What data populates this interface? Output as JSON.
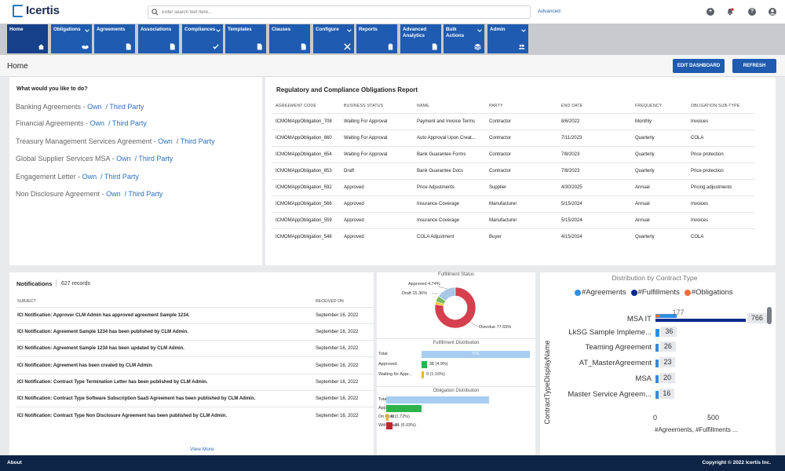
{
  "header": {
    "logo_text": "Icertis",
    "search_placeholder": "Enter search text here...",
    "advanced_label": "Advanced",
    "icons": [
      "plus-circle-icon",
      "bell-icon",
      "help-icon",
      "user-icon"
    ]
  },
  "nav": {
    "items": [
      {
        "label": "Home",
        "icon": "home-icon",
        "has_dropdown": false,
        "active": true
      },
      {
        "label": "Obligations",
        "icon": "handshake-icon",
        "has_dropdown": true
      },
      {
        "label": "Agreements",
        "icon": "document-icon",
        "has_dropdown": false
      },
      {
        "label": "Associations",
        "icon": "document-icon",
        "has_dropdown": false
      },
      {
        "label": "Compliances",
        "icon": "checkmarks-icon",
        "has_dropdown": true
      },
      {
        "label": "Templates",
        "icon": "document-icon",
        "has_dropdown": false
      },
      {
        "label": "Clauses",
        "icon": "document-icon",
        "has_dropdown": false
      },
      {
        "label": "Configure",
        "icon": "tools-icon",
        "has_dropdown": true
      },
      {
        "label": "Reports",
        "icon": "clipboard-icon",
        "has_dropdown": false
      },
      {
        "label": "Advanced\nAnalytics",
        "icon": "document-icon",
        "has_dropdown": false
      },
      {
        "label": "Bulk\nActions",
        "icon": "layers-icon",
        "has_dropdown": true
      },
      {
        "label": "Admin",
        "icon": "users-icon",
        "has_dropdown": true
      }
    ]
  },
  "page": {
    "title": "Home",
    "edit_dashboard": "EDIT DASHBOARD",
    "refresh": "REFRESH"
  },
  "quick_links": {
    "title": "What would you like to do?",
    "own": "Own",
    "third_party": "Third Party",
    "items": [
      "Banking Agreements",
      "Financial Agreements",
      "Treasury Management Services Agreement",
      "Global Supplier Services MSA",
      "Engagement Letter",
      "Non Disclosure Agreement"
    ]
  },
  "report": {
    "title": "Regulatory and Compliance Obligations Report",
    "columns": [
      "AGREEMENT CODE",
      "BUSINESS STATUS",
      "NAME",
      "PARTY",
      "END DATE",
      "FREQUENCY",
      "OBLIGATION SUB-TYPE"
    ],
    "rows": [
      [
        "ICMOMAppObligation_708",
        "Waiting For Approval",
        "Payment and Invoice Terms",
        "Contractor",
        "8/6/2022",
        "Monthly",
        "Invoices"
      ],
      [
        "ICMOMAppObligation_660",
        "Waiting For Approval",
        "Auto Approval Upon Creat...",
        "Contractor",
        "7/11/2023",
        "Quarterly",
        "COLA"
      ],
      [
        "ICMOMAppObligation_654",
        "Waiting For Approval",
        "Bank Guarantee Forms",
        "Contractor",
        "7/8/2023",
        "Quarterly",
        "Price protection"
      ],
      [
        "ICMOMAppObligation_653",
        "Draft",
        "Bank Guarantee Docs",
        "Contractor",
        "7/8/2023",
        "Quarterly",
        "Price protection"
      ],
      [
        "ICMOMAppObligation_592",
        "Approved",
        "Price Adjustments",
        "Supplier",
        "4/30/2025",
        "Annual",
        "Pricing adjustments"
      ],
      [
        "ICMOMAppObligation_566",
        "Approved",
        "Insurance Coverage",
        "Manufacturer",
        "5/15/2024",
        "Annual",
        "Invoices"
      ],
      [
        "ICMOMAppObligation_559",
        "Approved",
        "Insurance Coverage",
        "Manufacturer",
        "5/15/2024",
        "Annual",
        "Invoices"
      ],
      [
        "ICMOMAppObligation_546",
        "Approved",
        "COLA Adjustment",
        "Buyer",
        "4/15/2024",
        "Quarterly",
        "COLA"
      ]
    ]
  },
  "notifications": {
    "title": "Notifications",
    "count": "627 records",
    "columns": [
      "SUBJECT",
      "RECEIVED ON"
    ],
    "rows": [
      [
        "ICI Notification: Approver CLM Admin has approved agreement Sample 1234.",
        "September 16, 2022"
      ],
      [
        "ICI Notification: Agreement Sample 1234 has been published by CLM Admin.",
        "September 16, 2022"
      ],
      [
        "ICI Notification: Agreement Sample 1234 has been updated by CLM Admin.",
        "September 16, 2022"
      ],
      [
        "ICI Notification: Agreement has been created by CLM Admin.",
        "September 16, 2022"
      ],
      [
        "ICI Notification: Contract Type Termination Letter has been published by CLM Admin.",
        "September 16, 2022"
      ],
      [
        "ICI Notification: Contract Type Software Subscription SaaS Agreement has been published by CLM Admin.",
        "September 16, 2022"
      ],
      [
        "ICI Notification: Contract Type Non Disclosure Agreement has been published by CLM Admin.",
        "September 16, 2022"
      ]
    ],
    "view_more": "View More"
  },
  "chart_data": [
    {
      "type": "pie",
      "title": "Fulfillment Status",
      "categories": [
        "Approved",
        "Draft",
        "Overdue"
      ],
      "values": [
        4.74,
        15.36,
        77.65
      ],
      "labels": [
        "Approved 4.74%",
        "Draft 15.36%",
        "Overdue 77.65%"
      ],
      "colors": [
        "#7ab85c",
        "#a7c7e7",
        "#d4404e"
      ],
      "remainder_color": "#f0c419"
    },
    {
      "type": "bar",
      "title": "Fulfillment Distribution",
      "categories": [
        "Total",
        "Approved",
        "Waiting for Appr..."
      ],
      "values": [
        776,
        38,
        9
      ],
      "max": 776,
      "value_labels": [
        "776",
        "38 (4.9%)",
        "9 (1.16%)"
      ],
      "colors": [
        "#a7cdf0",
        "#2db34a",
        "#f0b429"
      ]
    },
    {
      "type": "bar",
      "title": "Obligation Distribution",
      "categories": [
        "Total",
        "Approved",
        "On Hold",
        "Withdrawn"
      ],
      "values": [
        348,
        120,
        6,
        21
      ],
      "max": 348,
      "value_labels": [
        "",
        "",
        "6 (1.72%)",
        "21 (6.03%)"
      ],
      "colors": [
        "#a7cdf0",
        "#2db34a",
        "#f0b429",
        "#c0272d"
      ]
    },
    {
      "type": "bar",
      "title": "Distribution by Contract Type",
      "ylabel": "ContractTypeDisplayName",
      "xlabel": "#Agreements, #Fulfillments ...",
      "legend": [
        "#Agreements",
        "#Fulfillments",
        "#Obligations"
      ],
      "colors": [
        "#2f8de4",
        "#0b2a8a",
        "#e8703a"
      ],
      "categories": [
        "MSA IT",
        "LkSG Sample Impleme...",
        "Teaming Agreement",
        "AT_MasterAgreement",
        "MSA",
        "Master Service Agreem..."
      ],
      "series": [
        {
          "name": "#Agreements",
          "values": [
            177,
            36,
            26,
            23,
            20,
            16
          ]
        },
        {
          "name": "#Fulfillments",
          "values": [
            766,
            0,
            0,
            0,
            0,
            0
          ]
        },
        {
          "name": "#Obligations",
          "values": [
            0,
            0,
            0,
            0,
            0,
            0
          ]
        }
      ],
      "value_labels": [
        "766",
        "36",
        "26",
        "23",
        "20",
        "16"
      ],
      "top_label": "177",
      "xlim": [
        0,
        800
      ],
      "x_ticks": [
        "0",
        "500"
      ]
    }
  ],
  "footer": {
    "about": "About",
    "copyright": "Copyright © 2022 Icertis Inc."
  }
}
